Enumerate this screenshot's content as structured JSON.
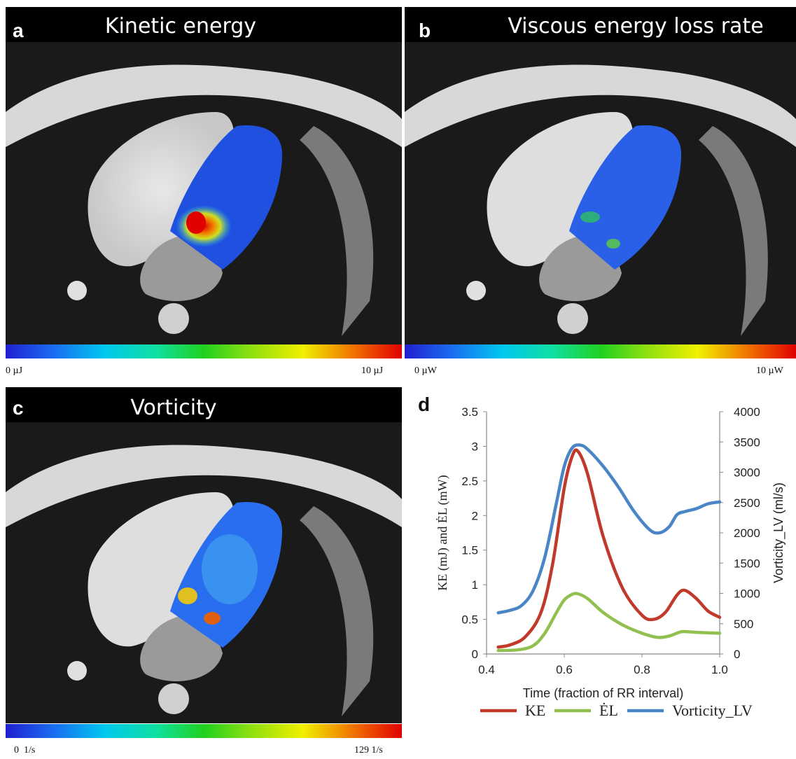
{
  "panels": {
    "a": {
      "letter": "a",
      "title": "Kinetic energy",
      "colorbar_min": "0 µJ",
      "colorbar_max": "10 µJ"
    },
    "b": {
      "letter": "b",
      "title": "Viscous energy loss rate",
      "colorbar_min": "0 µW",
      "colorbar_max": "10 µW"
    },
    "c": {
      "letter": "c",
      "title": "Vorticity",
      "colorbar_min": "0  1/s",
      "colorbar_max": "129 1/s"
    },
    "d": {
      "letter": "d"
    }
  },
  "colors": {
    "KE": "#c0392b",
    "EL": "#92c050",
    "Vorticity_LV": "#4a86c6"
  },
  "chart_data": {
    "type": "line",
    "xlabel": "Time (fraction of RR interval)",
    "ylabel_left": "KE (mJ)  and ĖL (mW)",
    "ylabel_right": "Vorticity_LV (ml/s)",
    "xlim": [
      0.4,
      1.0
    ],
    "ylim_left": [
      0,
      3.5
    ],
    "ylim_right": [
      0,
      4000
    ],
    "x_ticks": [
      "0.4",
      "0.6",
      "0.8",
      "1.0"
    ],
    "x_tick_values": [
      0.4,
      0.6,
      0.8,
      1.0
    ],
    "y_left_ticks": [
      "0",
      "0.5",
      "1",
      "1.5",
      "2",
      "2.5",
      "3",
      "3.5"
    ],
    "y_left_tick_values": [
      0,
      0.5,
      1,
      1.5,
      2,
      2.5,
      3,
      3.5
    ],
    "y_right_ticks": [
      "0",
      "500",
      "1000",
      "1500",
      "2000",
      "2500",
      "3000",
      "3500",
      "4000"
    ],
    "y_right_tick_values": [
      0,
      500,
      1000,
      1500,
      2000,
      2500,
      3000,
      3500,
      4000
    ],
    "legend_position": "bottom",
    "series": [
      {
        "name": "KE",
        "axis": "left",
        "x": [
          0.43,
          0.46,
          0.5,
          0.54,
          0.57,
          0.6,
          0.62,
          0.635,
          0.66,
          0.7,
          0.75,
          0.8,
          0.83,
          0.86,
          0.89,
          0.91,
          0.94,
          0.97,
          1.0
        ],
        "y": [
          0.1,
          0.13,
          0.25,
          0.6,
          1.3,
          2.4,
          2.85,
          2.93,
          2.6,
          1.7,
          0.95,
          0.56,
          0.5,
          0.6,
          0.85,
          0.92,
          0.8,
          0.62,
          0.53
        ]
      },
      {
        "name": "ĖL",
        "axis": "left",
        "x": [
          0.43,
          0.48,
          0.52,
          0.55,
          0.58,
          0.6,
          0.62,
          0.635,
          0.66,
          0.7,
          0.75,
          0.8,
          0.84,
          0.87,
          0.9,
          0.92,
          0.95,
          1.0
        ],
        "y": [
          0.05,
          0.06,
          0.12,
          0.3,
          0.6,
          0.78,
          0.86,
          0.87,
          0.8,
          0.6,
          0.42,
          0.3,
          0.24,
          0.26,
          0.32,
          0.32,
          0.31,
          0.3
        ]
      },
      {
        "name": "Vorticity_LV",
        "axis": "right",
        "x": [
          0.43,
          0.46,
          0.49,
          0.52,
          0.55,
          0.58,
          0.6,
          0.62,
          0.64,
          0.66,
          0.7,
          0.74,
          0.78,
          0.82,
          0.845,
          0.87,
          0.89,
          0.91,
          0.94,
          0.97,
          1.0
        ],
        "y": [
          680,
          720,
          800,
          1050,
          1600,
          2500,
          3100,
          3400,
          3450,
          3380,
          3100,
          2750,
          2350,
          2050,
          2000,
          2100,
          2300,
          2350,
          2400,
          2480,
          2510
        ]
      }
    ]
  }
}
